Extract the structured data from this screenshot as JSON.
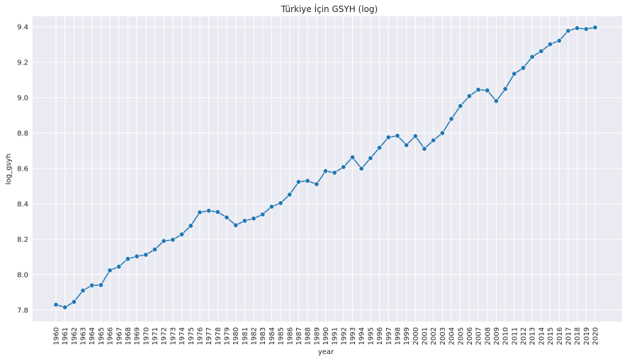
{
  "chart_data": {
    "type": "line",
    "title": "Türkiye İçin GSYH (log)",
    "xlabel": "year",
    "ylabel": "log_gsyh",
    "ylim": [
      7.735,
      9.46
    ],
    "yticks": [
      "7.8",
      "8.0",
      "8.2",
      "8.4",
      "8.6",
      "8.8",
      "9.0",
      "9.2",
      "9.4"
    ],
    "grid": true,
    "legend": "none",
    "colors": {
      "background": "#eaeaf2",
      "grid": "#ffffff",
      "line": "#1f77b4"
    },
    "x": [
      "1960",
      "1961",
      "1962",
      "1963",
      "1964",
      "1965",
      "1966",
      "1967",
      "1968",
      "1969",
      "1970",
      "1971",
      "1972",
      "1973",
      "1974",
      "1975",
      "1976",
      "1977",
      "1978",
      "1979",
      "1980",
      "1981",
      "1982",
      "1983",
      "1984",
      "1985",
      "1986",
      "1987",
      "1988",
      "1989",
      "1990",
      "1991",
      "1992",
      "1993",
      "1994",
      "1995",
      "1996",
      "1997",
      "1998",
      "1999",
      "2000",
      "2001",
      "2002",
      "2003",
      "2004",
      "2005",
      "2006",
      "2007",
      "2008",
      "2009",
      "2010",
      "2011",
      "2012",
      "2013",
      "2014",
      "2015",
      "2016",
      "2017",
      "2018",
      "2019",
      "2020"
    ],
    "values": [
      7.83,
      7.815,
      7.846,
      7.91,
      7.939,
      7.941,
      8.024,
      8.045,
      8.089,
      8.103,
      8.112,
      8.142,
      8.19,
      8.197,
      8.227,
      8.276,
      8.352,
      8.361,
      8.354,
      8.323,
      8.279,
      8.304,
      8.317,
      8.34,
      8.384,
      8.404,
      8.452,
      8.524,
      8.53,
      8.511,
      8.585,
      8.576,
      8.608,
      8.663,
      8.599,
      8.658,
      8.717,
      8.776,
      8.785,
      8.732,
      8.783,
      8.711,
      8.759,
      8.8,
      8.88,
      8.953,
      9.009,
      9.045,
      9.041,
      8.981,
      9.049,
      9.135,
      9.168,
      9.231,
      9.263,
      9.302,
      9.322,
      9.378,
      9.393,
      9.388,
      9.397
    ]
  }
}
